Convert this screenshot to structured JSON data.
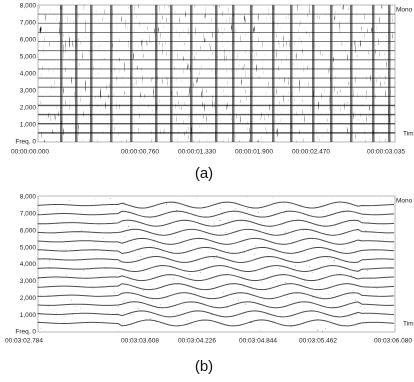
{
  "panels": [
    {
      "ylabels": [
        "8,000",
        "7,000",
        "6,000",
        "5,000",
        "4,000",
        "3,000",
        "2,000",
        "1,000",
        "Freq. 0"
      ],
      "xlabels": [
        "00:00:00.000",
        "00:00:00.760",
        "00:00:01.330",
        "00:00:01.900",
        "00:00:02.470",
        "00:00:03.035"
      ],
      "channel": "Mono",
      "axis": "Tim",
      "caption": "(a)"
    },
    {
      "ylabels": [
        "8,000",
        "7,000",
        "6,000",
        "5,000",
        "4,000",
        "3,000",
        "2,000",
        "1,000",
        "Freq. 0"
      ],
      "xlabels": [
        "00:03:02.784",
        "00:03:03.608",
        "00:03:04.226",
        "00:03:04.844",
        "00:03:05.462",
        "00:03:06.080"
      ],
      "channel": "Mono",
      "axis": "Tim",
      "caption": "(b)"
    }
  ]
}
